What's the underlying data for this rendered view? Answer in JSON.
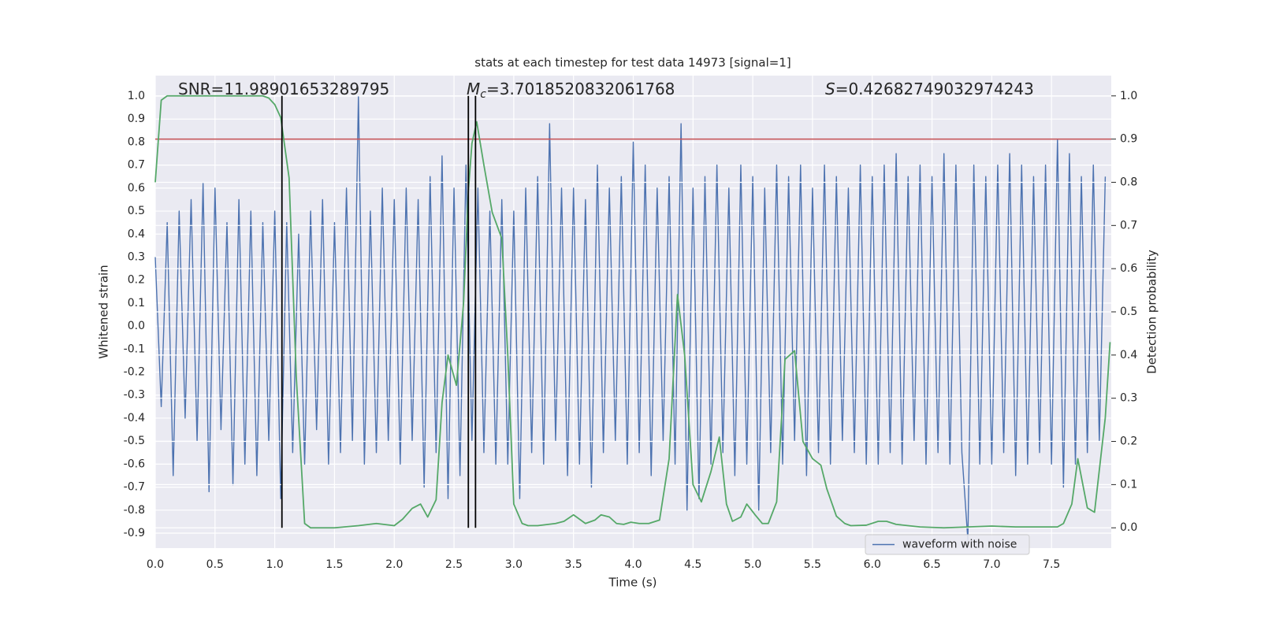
{
  "chart_data": {
    "type": "line",
    "title": "stats at each timestep for test data 14973 [signal=1]",
    "xlabel": "Time (s)",
    "ylabel": "Whitened strain",
    "y2label": "Detection probability",
    "xlim": [
      0,
      8.0
    ],
    "ylim": [
      -0.965,
      1.089
    ],
    "y2lim": [
      -0.047,
      1.047
    ],
    "xticks": [
      {
        "value": 0,
        "label": "0.0"
      },
      0.5,
      {
        "value": 1,
        "label": "1.0"
      },
      1.5,
      {
        "value": 2,
        "label": "2.0"
      },
      2.5,
      {
        "value": 3,
        "label": "3.0"
      },
      3.5,
      {
        "value": 4,
        "label": "4.0"
      },
      4.5,
      {
        "value": 5,
        "label": "5.0"
      },
      5.5,
      {
        "value": 6,
        "label": "6.0"
      },
      6.5,
      {
        "value": 7,
        "label": "7.0"
      },
      7.5
    ],
    "yticks": [
      {
        "value": 1,
        "label": "1.0"
      },
      0.9,
      0.8,
      0.7,
      0.6,
      0.5,
      0.4,
      0.3,
      0.2,
      0.1,
      {
        "value": 0,
        "label": "0.0"
      },
      -0.1,
      -0.2,
      -0.3,
      -0.4,
      -0.5,
      -0.6,
      -0.7,
      -0.8,
      -0.9
    ],
    "y2ticks": [
      {
        "value": 0,
        "label": "0.0"
      },
      0.1,
      0.2,
      0.3,
      0.4,
      0.5,
      0.6,
      0.7,
      0.8,
      0.9,
      {
        "value": 1,
        "label": "1.0"
      }
    ],
    "grid": true,
    "background": "#eaeaf2",
    "legend_position": "lower right",
    "series": [
      {
        "name": "waveform with noise",
        "color": "#4c72b0",
        "axis": "y",
        "x": [
          0,
          0.05,
          0.1,
          0.15,
          0.2,
          0.25,
          0.3,
          0.35,
          0.4,
          0.45,
          0.5,
          0.55,
          0.6,
          0.65,
          0.7,
          0.75,
          0.8,
          0.85,
          0.9,
          0.95,
          1,
          1.05,
          1.1,
          1.15,
          1.2,
          1.25,
          1.3,
          1.35,
          1.4,
          1.45,
          1.5,
          1.55,
          1.6,
          1.65,
          1.7,
          1.75,
          1.8,
          1.85,
          1.9,
          1.95,
          2,
          2.05,
          2.1,
          2.15,
          2.2,
          2.25,
          2.3,
          2.35,
          2.4,
          2.45,
          2.5,
          2.55,
          2.6,
          2.65,
          2.7,
          2.75,
          2.8,
          2.85,
          2.9,
          2.95,
          3,
          3.05,
          3.1,
          3.15,
          3.2,
          3.25,
          3.3,
          3.35,
          3.4,
          3.45,
          3.5,
          3.55,
          3.6,
          3.65,
          3.7,
          3.75,
          3.8,
          3.85,
          3.9,
          3.95,
          4,
          4.05,
          4.1,
          4.15,
          4.2,
          4.25,
          4.3,
          4.35,
          4.4,
          4.45,
          4.5,
          4.55,
          4.6,
          4.65,
          4.7,
          4.75,
          4.8,
          4.85,
          4.9,
          4.95,
          5,
          5.05,
          5.1,
          5.15,
          5.2,
          5.25,
          5.3,
          5.35,
          5.4,
          5.45,
          5.5,
          5.55,
          5.6,
          5.65,
          5.7,
          5.75,
          5.8,
          5.85,
          5.9,
          5.95,
          6,
          6.05,
          6.1,
          6.15,
          6.2,
          6.25,
          6.3,
          6.35,
          6.4,
          6.45,
          6.5,
          6.55,
          6.6,
          6.65,
          6.7,
          6.75,
          6.8,
          6.85,
          6.9,
          6.95,
          7,
          7.05,
          7.1,
          7.15,
          7.2,
          7.25,
          7.3,
          7.35,
          7.4,
          7.45,
          7.5,
          7.55,
          7.6,
          7.65,
          7.7,
          7.75,
          7.8,
          7.85,
          7.9,
          7.95
        ],
        "values": [
          0.3,
          -0.35,
          0.45,
          -0.65,
          0.5,
          -0.4,
          0.55,
          -0.5,
          0.62,
          -0.72,
          0.6,
          -0.45,
          0.45,
          -0.69,
          0.55,
          -0.6,
          0.5,
          -0.65,
          0.45,
          -0.5,
          0.5,
          -0.75,
          0.45,
          -0.55,
          0.4,
          -0.6,
          0.5,
          -0.45,
          0.55,
          -0.6,
          0.45,
          -0.55,
          0.6,
          -0.5,
          1.0,
          -0.6,
          0.5,
          -0.55,
          0.6,
          -0.5,
          0.55,
          -0.6,
          0.6,
          -0.5,
          0.55,
          -0.7,
          0.65,
          -0.55,
          0.74,
          -0.75,
          0.6,
          -0.65,
          0.7,
          -0.5,
          0.6,
          -0.55,
          0.5,
          -0.6,
          0.55,
          -0.6,
          0.5,
          -0.75,
          0.6,
          -0.55,
          0.65,
          -0.6,
          0.88,
          -0.5,
          0.6,
          -0.65,
          0.6,
          -0.6,
          0.55,
          -0.7,
          0.7,
          -0.55,
          0.6,
          -0.5,
          0.65,
          -0.6,
          0.8,
          -0.55,
          0.7,
          -0.65,
          0.6,
          -0.5,
          0.65,
          -0.6,
          0.88,
          -0.8,
          0.6,
          -0.75,
          0.65,
          -0.6,
          0.7,
          -0.55,
          0.6,
          -0.65,
          0.7,
          -0.6,
          0.65,
          -0.8,
          0.6,
          -0.55,
          0.7,
          -0.6,
          0.65,
          -0.5,
          0.7,
          -0.65,
          0.6,
          -0.55,
          0.7,
          -0.6,
          0.65,
          -0.5,
          0.6,
          -0.55,
          0.7,
          -0.6,
          0.65,
          -0.6,
          0.7,
          -0.55,
          0.75,
          -0.6,
          0.65,
          -0.5,
          0.7,
          -0.6,
          0.65,
          -0.55,
          0.75,
          -0.6,
          0.7,
          -0.55,
          -0.93,
          0.7,
          -0.6,
          0.65,
          -0.6,
          0.7,
          -0.55,
          0.75,
          -0.65,
          0.7,
          -0.6,
          0.65,
          -0.55,
          0.7,
          -0.6,
          0.81,
          -0.7,
          0.75,
          -0.6,
          0.65,
          -0.55,
          0.7,
          -0.5,
          0.65
        ]
      },
      {
        "color": "#55a868",
        "axis": "y2",
        "x": [
          0,
          0.05,
          0.1,
          0.2,
          0.4,
          0.6,
          0.8,
          0.9,
          0.95,
          1,
          1.05,
          1.12,
          1.18,
          1.25,
          1.3,
          1.5,
          1.7,
          1.85,
          2,
          2.07,
          2.15,
          2.22,
          2.28,
          2.35,
          2.4,
          2.45,
          2.52,
          2.58,
          2.62,
          2.65,
          2.69,
          2.75,
          2.82,
          2.9,
          2.95,
          3,
          3.07,
          3.12,
          3.2,
          3.35,
          3.42,
          3.5,
          3.6,
          3.68,
          3.73,
          3.8,
          3.86,
          3.92,
          3.98,
          4.05,
          4.13,
          4.22,
          4.3,
          4.37,
          4.43,
          4.5,
          4.57,
          4.65,
          4.72,
          4.78,
          4.83,
          4.9,
          4.95,
          5.02,
          5.08,
          5.13,
          5.2,
          5.27,
          5.35,
          5.42,
          5.5,
          5.57,
          5.62,
          5.7,
          5.77,
          5.82,
          5.95,
          6.05,
          6.12,
          6.2,
          6.4,
          6.6,
          6.8,
          7,
          7.2,
          7.4,
          7.55,
          7.6,
          7.67,
          7.72,
          7.8,
          7.86,
          7.95,
          7.99
        ],
        "values": [
          0.8,
          0.99,
          1,
          1,
          1,
          1,
          1,
          1,
          0.995,
          0.98,
          0.95,
          0.81,
          0.35,
          0.01,
          0,
          0,
          0.005,
          0.01,
          0.005,
          0.02,
          0.045,
          0.055,
          0.025,
          0.065,
          0.29,
          0.4,
          0.33,
          0.52,
          0.78,
          0.89,
          0.94,
          0.84,
          0.73,
          0.67,
          0.4,
          0.055,
          0.01,
          0.005,
          0.005,
          0.01,
          0.015,
          0.03,
          0.01,
          0.018,
          0.03,
          0.025,
          0.01,
          0.008,
          0.013,
          0.01,
          0.01,
          0.018,
          0.16,
          0.54,
          0.4,
          0.1,
          0.06,
          0.13,
          0.21,
          0.055,
          0.015,
          0.025,
          0.055,
          0.03,
          0.01,
          0.01,
          0.06,
          0.39,
          0.41,
          0.2,
          0.16,
          0.145,
          0.09,
          0.027,
          0.01,
          0.005,
          0.006,
          0.015,
          0.015,
          0.008,
          0.002,
          0,
          0.002,
          0.004,
          0.002,
          0.002,
          0.002,
          0.01,
          0.055,
          0.16,
          0.046,
          0.036,
          0.255,
          0.43
        ]
      }
    ],
    "hline": 0.9,
    "hline_color": "#c44e52",
    "vlines": [
      1.06,
      2.62,
      2.68
    ],
    "vline_color": "#000000",
    "annotations": [
      {
        "text": "SNR=11.98901653289795"
      },
      {
        "symbol": "M",
        "subscript": "c",
        "text": "=3.7018520832061768"
      },
      {
        "symbol": "S",
        "text": "=0.42682749032974243"
      }
    ]
  }
}
